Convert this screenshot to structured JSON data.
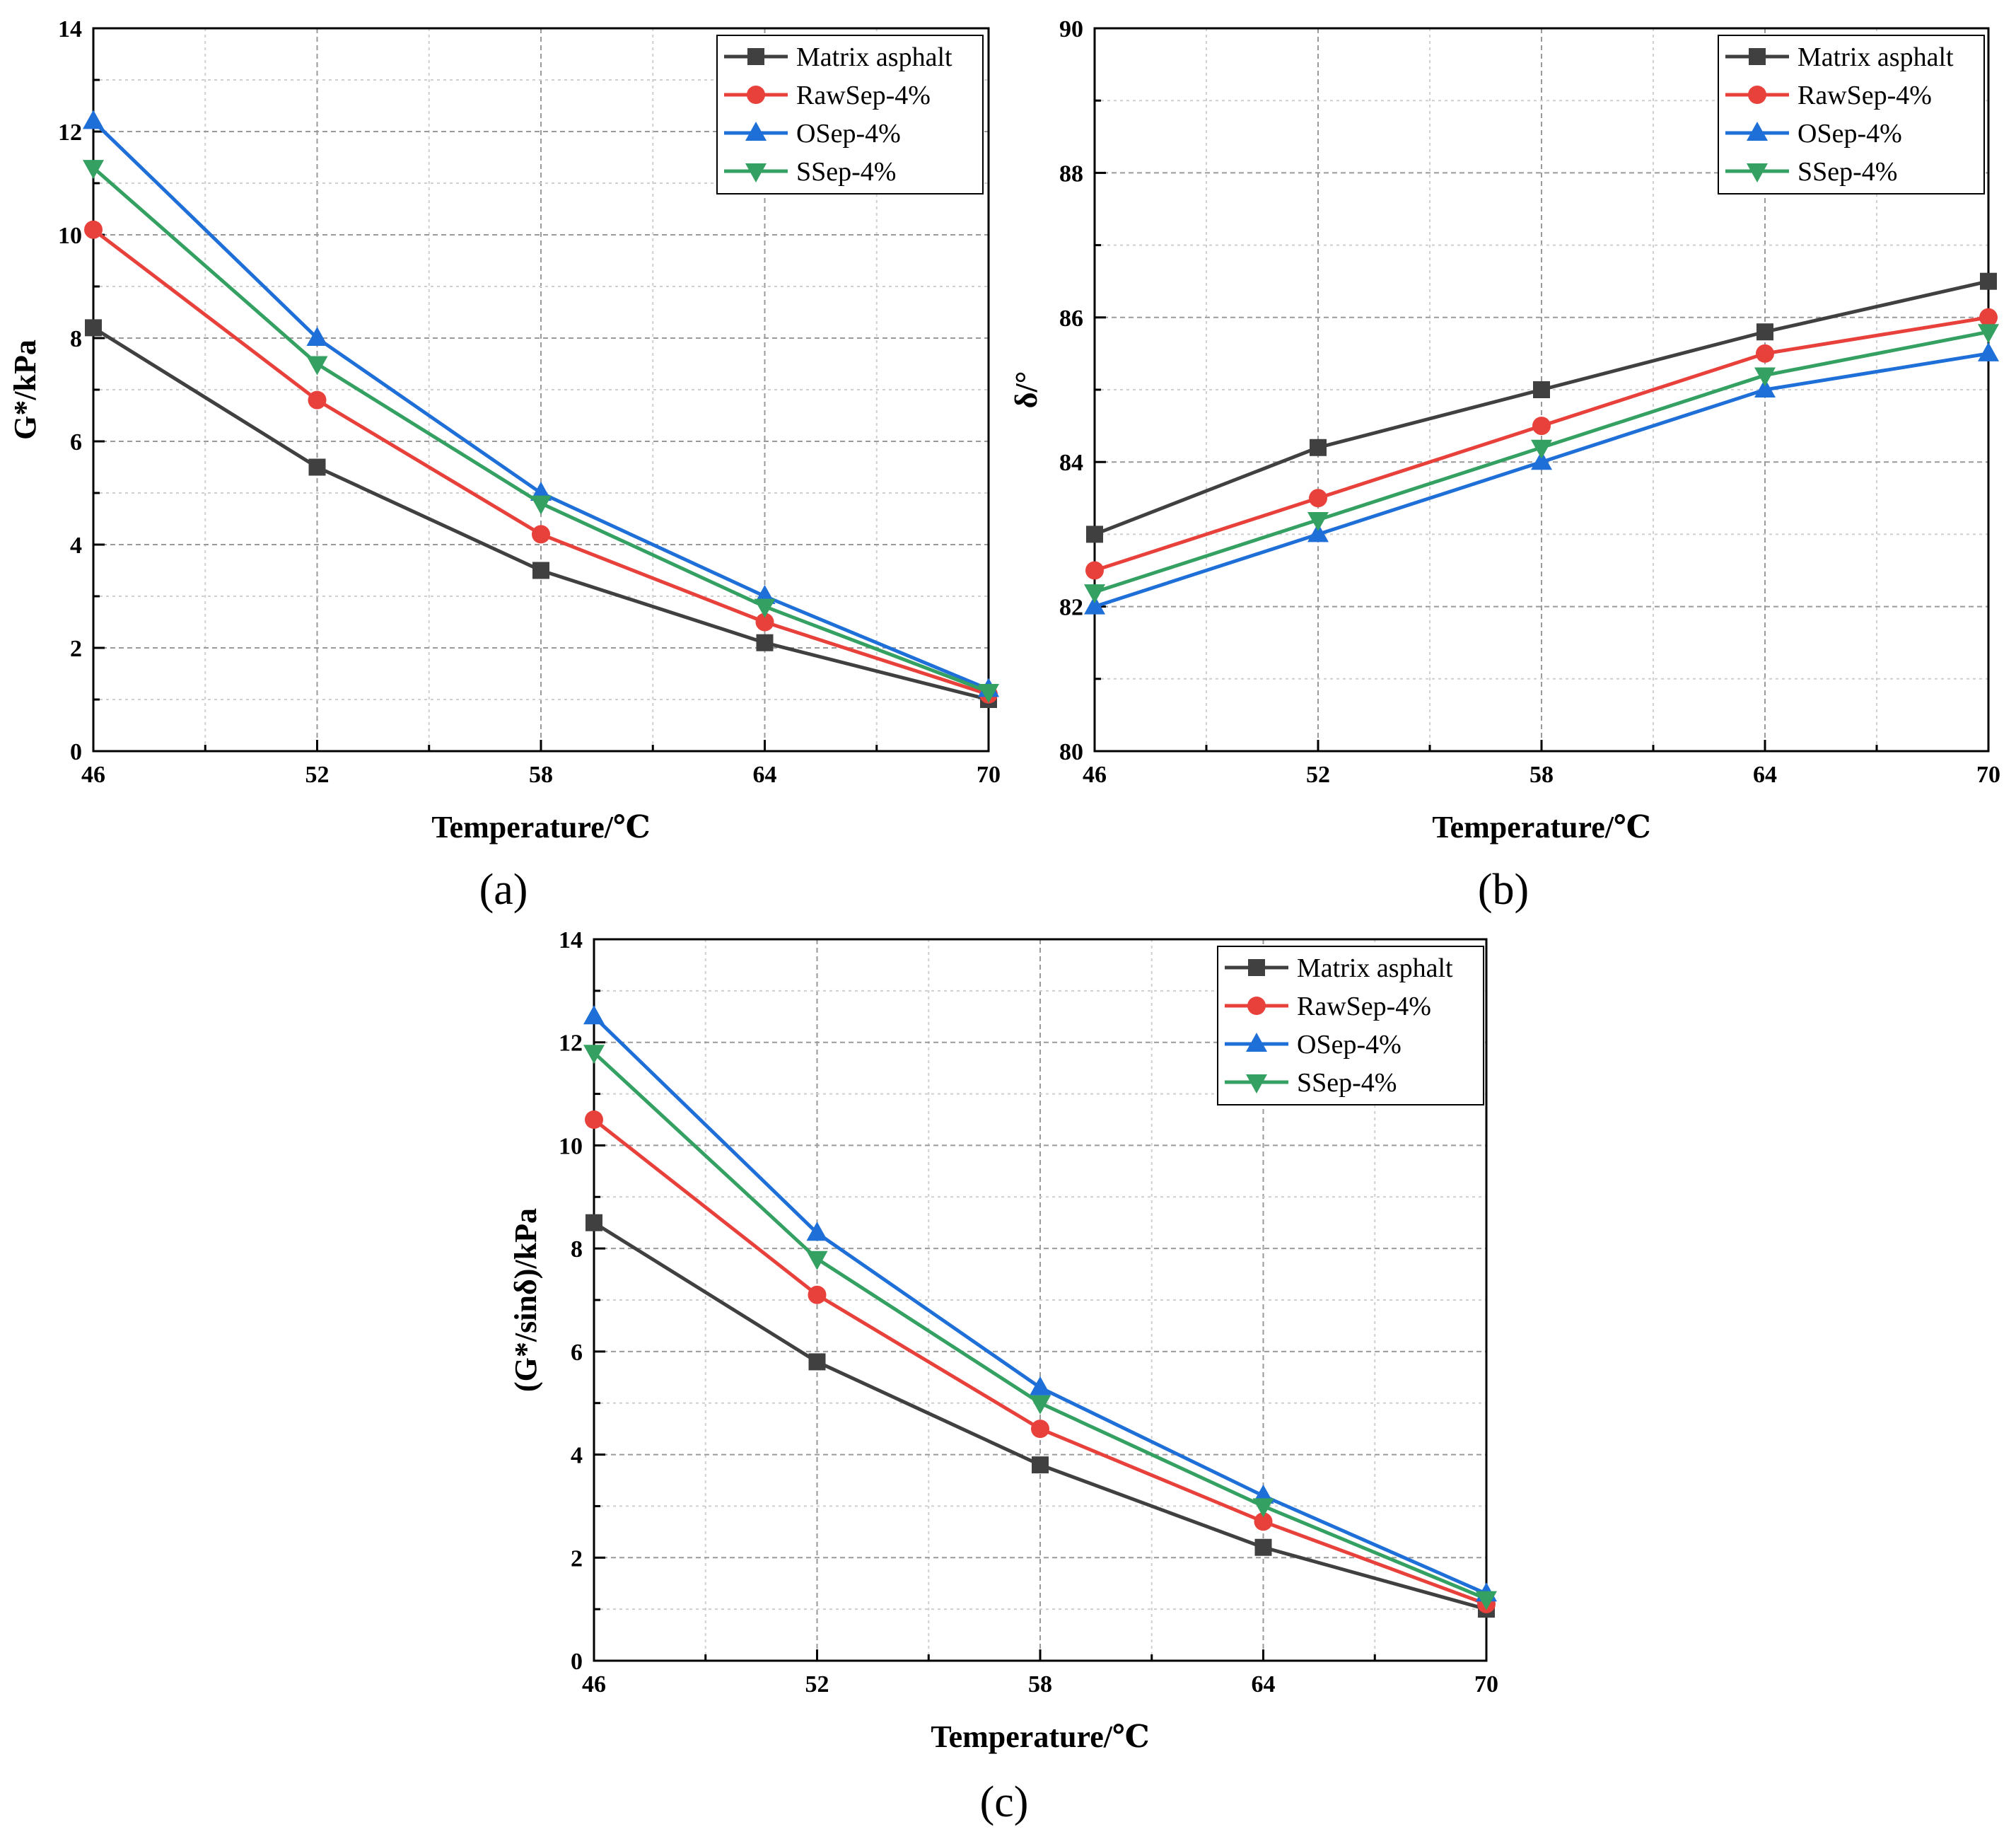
{
  "chart_data": [
    {
      "type": "line",
      "panel_label": "(a)",
      "xlabel": "Temperature/℃",
      "ylabel": "G*/kPa",
      "xlim": [
        46,
        70
      ],
      "ylim": [
        0,
        14
      ],
      "x_ticks": [
        46,
        52,
        58,
        64,
        70
      ],
      "y_ticks": [
        0,
        2,
        4,
        6,
        8,
        10,
        12,
        14
      ],
      "grid": true,
      "legend_position": "top-right",
      "x": [
        46,
        52,
        58,
        64,
        70
      ],
      "series": [
        {
          "name": "Matrix asphalt",
          "color": "#404040",
          "marker": "square",
          "values": [
            8.2,
            5.5,
            3.5,
            2.1,
            1.0
          ]
        },
        {
          "name": "RawSep-4%",
          "color": "#e8413b",
          "marker": "circle",
          "values": [
            10.1,
            6.8,
            4.2,
            2.5,
            1.1
          ]
        },
        {
          "name": "OSep-4%",
          "color": "#1f6fd8",
          "marker": "triangle-up",
          "values": [
            12.2,
            8.0,
            5.0,
            3.0,
            1.2
          ]
        },
        {
          "name": "SSep-4%",
          "color": "#34a162",
          "marker": "triangle-down",
          "values": [
            11.3,
            7.5,
            4.8,
            2.8,
            1.15
          ]
        }
      ]
    },
    {
      "type": "line",
      "panel_label": "(b)",
      "xlabel": "Temperature/℃",
      "ylabel": "δ/°",
      "xlim": [
        46,
        70
      ],
      "ylim": [
        80,
        90
      ],
      "x_ticks": [
        46,
        52,
        58,
        64,
        70
      ],
      "y_ticks": [
        80,
        82,
        84,
        86,
        88,
        90
      ],
      "grid": true,
      "legend_position": "top-right",
      "x": [
        46,
        52,
        58,
        64,
        70
      ],
      "series": [
        {
          "name": "Matrix asphalt",
          "color": "#404040",
          "marker": "square",
          "values": [
            83.0,
            84.2,
            85.0,
            85.8,
            86.5
          ]
        },
        {
          "name": "RawSep-4%",
          "color": "#e8413b",
          "marker": "circle",
          "values": [
            82.5,
            83.5,
            84.5,
            85.5,
            86.0
          ]
        },
        {
          "name": "OSep-4%",
          "color": "#1f6fd8",
          "marker": "triangle-up",
          "values": [
            82.0,
            83.0,
            84.0,
            85.0,
            85.5
          ]
        },
        {
          "name": "SSep-4%",
          "color": "#34a162",
          "marker": "triangle-down",
          "values": [
            82.2,
            83.2,
            84.2,
            85.2,
            85.8
          ]
        }
      ]
    },
    {
      "type": "line",
      "panel_label": "(c)",
      "xlabel": "Temperature/℃",
      "ylabel": "(G*/sinδ)/kPa",
      "xlim": [
        46,
        70
      ],
      "ylim": [
        0,
        14
      ],
      "x_ticks": [
        46,
        52,
        58,
        64,
        70
      ],
      "y_ticks": [
        0,
        2,
        4,
        6,
        8,
        10,
        12,
        14
      ],
      "grid": true,
      "legend_position": "top-right",
      "x": [
        46,
        52,
        58,
        64,
        70
      ],
      "series": [
        {
          "name": "Matrix asphalt",
          "color": "#404040",
          "marker": "square",
          "values": [
            8.5,
            5.8,
            3.8,
            2.2,
            1.0
          ]
        },
        {
          "name": "RawSep-4%",
          "color": "#e8413b",
          "marker": "circle",
          "values": [
            10.5,
            7.1,
            4.5,
            2.7,
            1.1
          ]
        },
        {
          "name": "OSep-4%",
          "color": "#1f6fd8",
          "marker": "triangle-up",
          "values": [
            12.5,
            8.3,
            5.3,
            3.2,
            1.3
          ]
        },
        {
          "name": "SSep-4%",
          "color": "#34a162",
          "marker": "triangle-down",
          "values": [
            11.8,
            7.8,
            5.0,
            3.0,
            1.2
          ]
        }
      ]
    }
  ]
}
